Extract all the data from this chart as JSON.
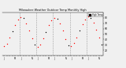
{
  "title": "Milwaukee Weather Outdoor Temp Monthly High",
  "background_color": "#f0f0f0",
  "plot_bg": "#f0f0f0",
  "dot_color": "#ff0000",
  "dot_color2": "#000000",
  "ylim": [
    10,
    90
  ],
  "yticks": [
    20,
    30,
    40,
    50,
    60,
    70,
    80
  ],
  "num_months": 36,
  "temps_high": [
    28,
    32,
    44,
    55,
    67,
    76,
    81,
    79,
    70,
    57,
    42,
    30,
    26,
    30,
    42,
    54,
    66,
    75,
    80,
    78,
    69,
    56,
    41,
    29,
    28,
    33,
    44,
    56,
    68,
    77,
    82,
    80,
    71,
    58,
    43,
    31
  ],
  "grid_color": "#888888",
  "grid_positions": [
    6,
    12,
    18,
    24,
    30
  ],
  "legend_label": "High Temp",
  "legend_box_color": "#ff0000",
  "xtick_labels": [
    "J",
    "",
    "",
    "",
    "M",
    "",
    "J",
    "",
    "",
    "",
    "N",
    "",
    "J",
    "",
    "",
    "",
    "M",
    "",
    "J",
    "",
    "",
    "",
    "N",
    "",
    "J",
    "",
    "",
    "",
    "M",
    "",
    "J",
    "",
    "",
    "",
    "N",
    ""
  ]
}
